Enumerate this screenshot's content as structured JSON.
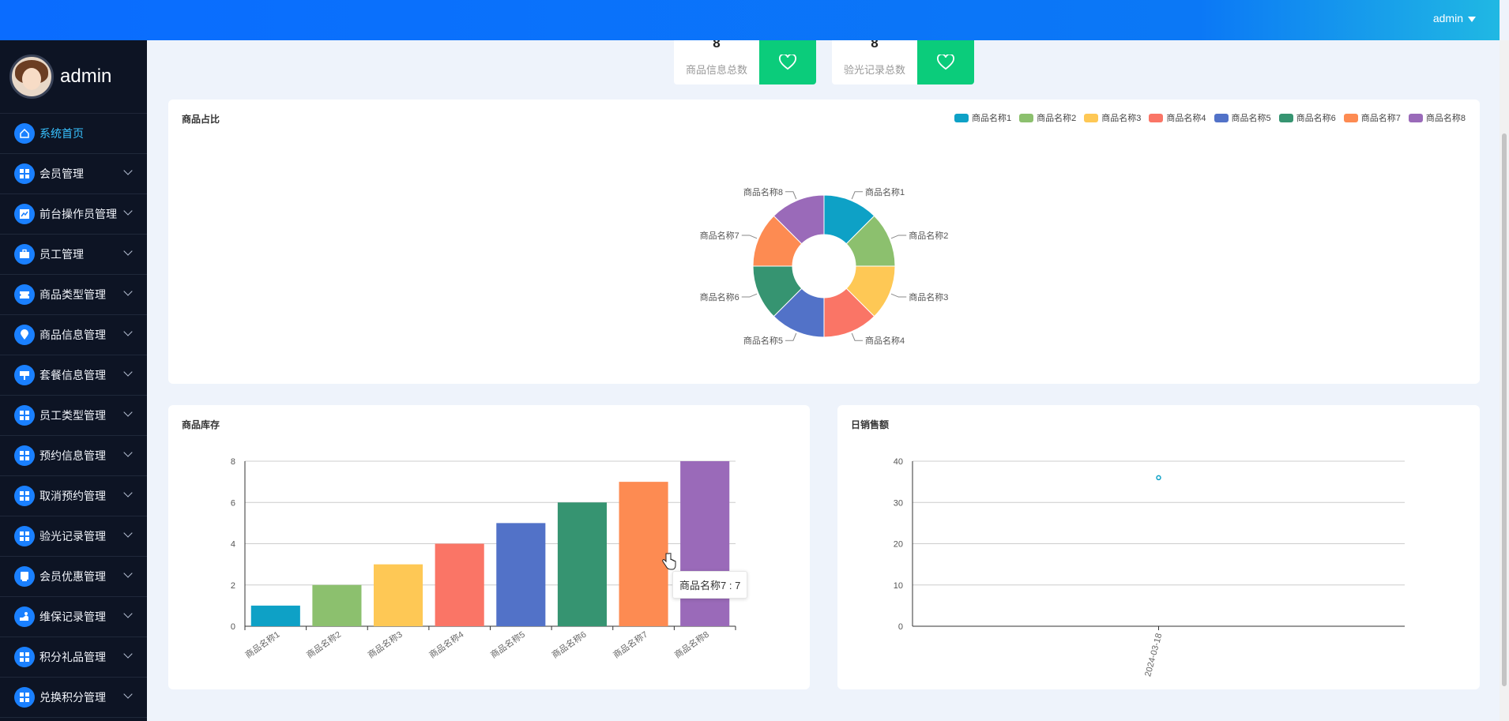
{
  "header": {
    "user": "admin"
  },
  "sidebar": {
    "profile_name": "admin",
    "items": [
      {
        "label": "系统首页",
        "icon": "home-icon",
        "active": true,
        "expandable": false
      },
      {
        "label": "会员管理",
        "icon": "grid-icon",
        "expandable": true
      },
      {
        "label": "前台操作员管理",
        "icon": "chart-icon",
        "expandable": true
      },
      {
        "label": "员工管理",
        "icon": "briefcase-icon",
        "expandable": true
      },
      {
        "label": "商品类型管理",
        "icon": "ticket-icon",
        "expandable": true
      },
      {
        "label": "商品信息管理",
        "icon": "pin-icon",
        "expandable": true
      },
      {
        "label": "套餐信息管理",
        "icon": "sign-icon",
        "expandable": true
      },
      {
        "label": "员工类型管理",
        "icon": "grid-icon",
        "expandable": true
      },
      {
        "label": "预约信息管理",
        "icon": "grid-icon",
        "expandable": true
      },
      {
        "label": "取消预约管理",
        "icon": "grid-icon",
        "expandable": true
      },
      {
        "label": "验光记录管理",
        "icon": "grid-icon",
        "expandable": true
      },
      {
        "label": "会员优惠管理",
        "icon": "card-icon",
        "expandable": true
      },
      {
        "label": "维保记录管理",
        "icon": "hand-icon",
        "expandable": true
      },
      {
        "label": "积分礼品管理",
        "icon": "grid-icon",
        "expandable": true
      },
      {
        "label": "兑换积分管理",
        "icon": "grid-icon",
        "expandable": true
      }
    ]
  },
  "stats": [
    {
      "value": "8",
      "label": "商品信息总数",
      "icon": "heart-icon"
    },
    {
      "value": "8",
      "label": "验光记录总数",
      "icon": "heart-icon"
    }
  ],
  "colors": {
    "accent": "#0a6cff",
    "stat_icon_bg": "#0bcc7b",
    "palette": [
      "#0ea1c6",
      "#8cc06e",
      "#fec855",
      "#fa7566",
      "#5272c8",
      "#369471",
      "#fd8b52",
      "#9a6ab9"
    ]
  },
  "chart_data": [
    {
      "type": "pie",
      "title": "商品占比",
      "donut": true,
      "legend_position": "top-right",
      "categories": [
        "商品名称1",
        "商品名称2",
        "商品名称3",
        "商品名称4",
        "商品名称5",
        "商品名称6",
        "商品名称7",
        "商品名称8"
      ],
      "values": [
        1,
        1,
        1,
        1,
        1,
        1,
        1,
        1
      ]
    },
    {
      "type": "bar",
      "title": "商品库存",
      "categories": [
        "商品名称1",
        "商品名称2",
        "商品名称3",
        "商品名称4",
        "商品名称5",
        "商品名称6",
        "商品名称7",
        "商品名称8"
      ],
      "values": [
        1,
        2,
        3,
        4,
        5,
        6,
        7,
        8
      ],
      "ylim": [
        0,
        8
      ],
      "yticks": [
        0,
        2,
        4,
        6,
        8
      ],
      "grid": true,
      "tooltip": "商品名称7 : 7"
    },
    {
      "type": "scatter",
      "title": "日销售额",
      "x": [
        "2024-03-18"
      ],
      "y": [
        36
      ],
      "ylim": [
        0,
        40
      ],
      "yticks": [
        0,
        10,
        20,
        30,
        40
      ],
      "grid": true
    }
  ]
}
